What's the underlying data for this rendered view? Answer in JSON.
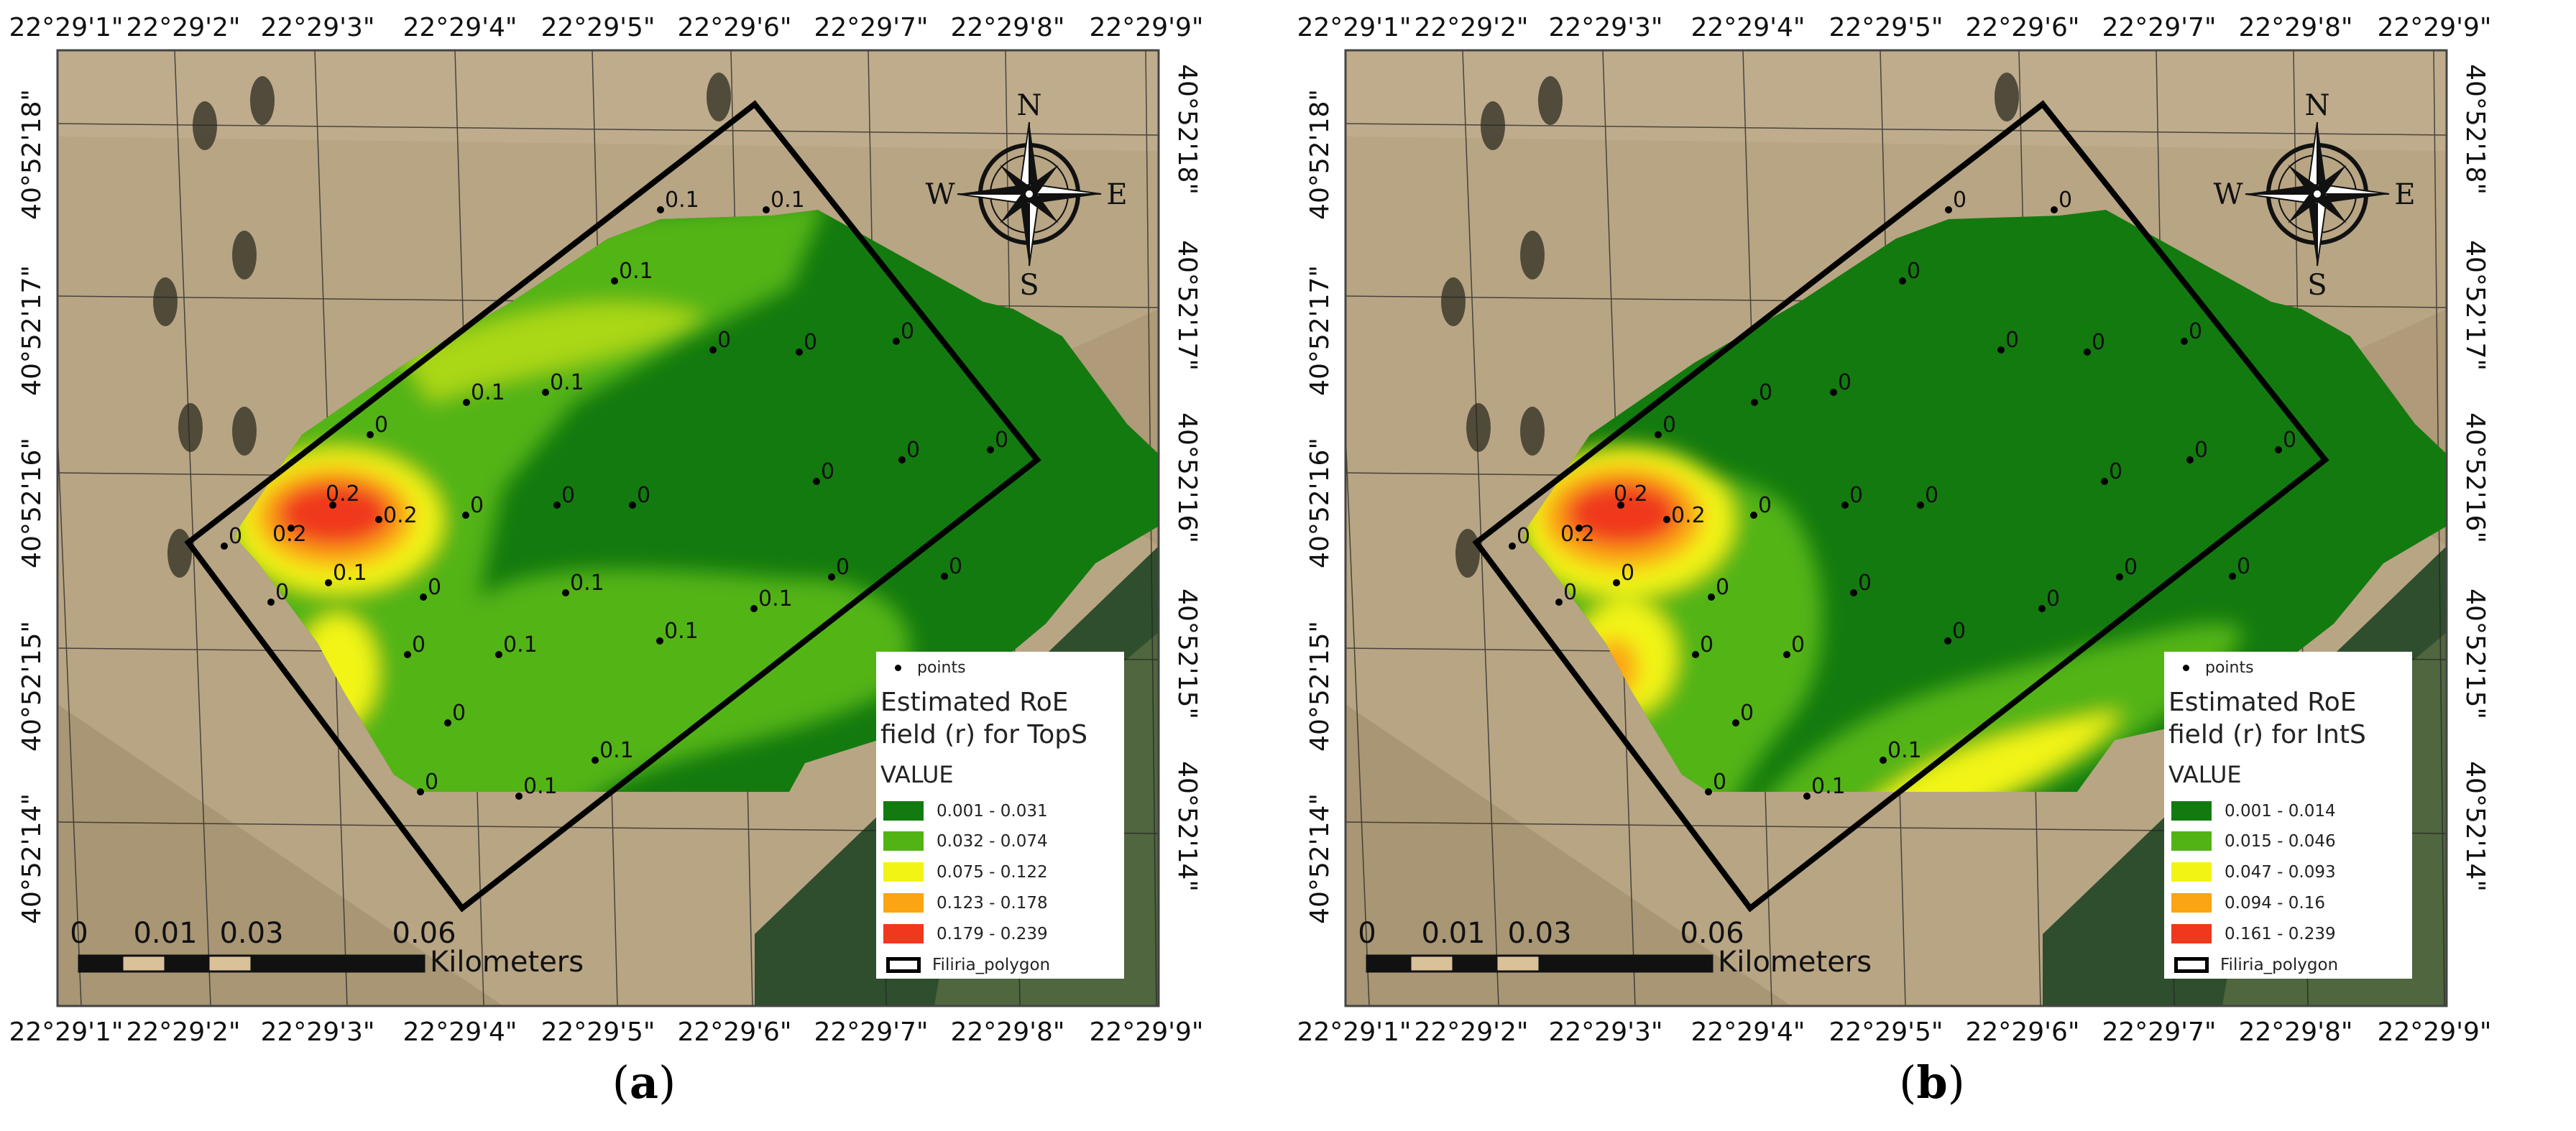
{
  "colors": {
    "class1": "#137a0f",
    "class2": "#52b414",
    "class3": "#f2f413",
    "class4": "#fba514",
    "class5": "#f0381c",
    "polygon": "#000000"
  },
  "axes": {
    "longitude_labels": [
      "22°29'1\"",
      "22°29'2\"",
      "22°29'3\"",
      "22°29'4\"",
      "22°29'5\"",
      "22°29'6\"",
      "22°29'7\"",
      "22°29'8\"",
      "22°29'9\""
    ],
    "latitude_labels": [
      "40°52'18\"",
      "40°52'17\"",
      "40°52'16\"",
      "40°52'15\"",
      "40°52'14\""
    ]
  },
  "compass": {
    "north": "N",
    "south": "S",
    "east": "E",
    "west": "W"
  },
  "scalebar": {
    "ticks": [
      "0",
      "0.01",
      "0.03",
      "0.06"
    ],
    "unit": "Kilometers"
  },
  "panels": [
    {
      "caption_letter": "a",
      "legend": {
        "points_label": "points",
        "title": "Estimated RoE field (r) for TopS",
        "value_header": "VALUE",
        "classes": [
          "0.001 - 0.031",
          "0.032 - 0.074",
          "0.075 - 0.122",
          "0.123 - 0.178",
          "0.179 - 0.239"
        ],
        "polygon_label": "Filiria_polygon"
      },
      "point_values": [
        "0.1",
        "0.1",
        "0.1",
        "0",
        "0",
        "0",
        "0.1",
        "0.1",
        "0",
        "0",
        "0",
        "0",
        "0",
        "0",
        "0.2",
        "0.2",
        "0.2",
        "0",
        "0",
        "0",
        "0.1",
        "0",
        "0",
        "0",
        "0.1",
        "0.1",
        "0.1",
        "0.1",
        "0",
        "0",
        "0.1",
        "0",
        "0.1"
      ]
    },
    {
      "caption_letter": "b",
      "legend": {
        "points_label": "points",
        "title": "Estimated RoE field (r) for IntS",
        "value_header": "VALUE",
        "classes": [
          "0.001 - 0.014",
          "0.015 - 0.046",
          "0.047 - 0.093",
          "0.094 - 0.16",
          "0.161 - 0.239"
        ],
        "polygon_label": "Filiria_polygon"
      },
      "point_values": [
        "0",
        "0",
        "0",
        "0",
        "0",
        "0",
        "0",
        "0",
        "0",
        "0",
        "0",
        "0",
        "0",
        "0",
        "0.2",
        "0.2",
        "0.2",
        "0",
        "0",
        "0",
        "0",
        "0",
        "0",
        "0",
        "0",
        "0",
        "0",
        "0",
        "0",
        "0",
        "0.1",
        "0",
        "0.1"
      ]
    }
  ]
}
